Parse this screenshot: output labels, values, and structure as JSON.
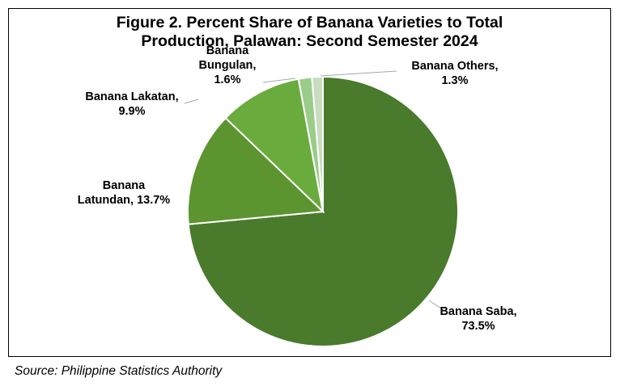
{
  "chart_data": {
    "type": "pie",
    "title_lines": [
      "Figure 2. Percent Share of Banana Varieties to Total",
      "Production, Palawan: Second Semester 2024"
    ],
    "slices": [
      {
        "name": "Banana Saba",
        "value": 73.5,
        "label_lines": [
          "Banana Saba,",
          "73.5%"
        ],
        "color": "#4a7a2c"
      },
      {
        "name": "Banana Latundan",
        "value": 13.7,
        "label_lines": [
          "Banana",
          "Latundan, 13.7%"
        ],
        "color": "#5c9430"
      },
      {
        "name": "Banana Lakatan",
        "value": 9.9,
        "label_lines": [
          "Banana Lakatan,",
          "9.9%"
        ],
        "color": "#6aab3e"
      },
      {
        "name": "Banana Bungulan",
        "value": 1.6,
        "label_lines": [
          "Banana",
          "Bungulan,",
          "1.6%"
        ],
        "color": "#9ccc8a"
      },
      {
        "name": "Banana Others",
        "value": 1.3,
        "label_lines": [
          "Banana Others,",
          "1.3%"
        ],
        "color": "#c7dcc0"
      }
    ],
    "legend": "none",
    "data_labels": "outside, with leader lines"
  },
  "source": "Source: Philippine Statistics Authority"
}
